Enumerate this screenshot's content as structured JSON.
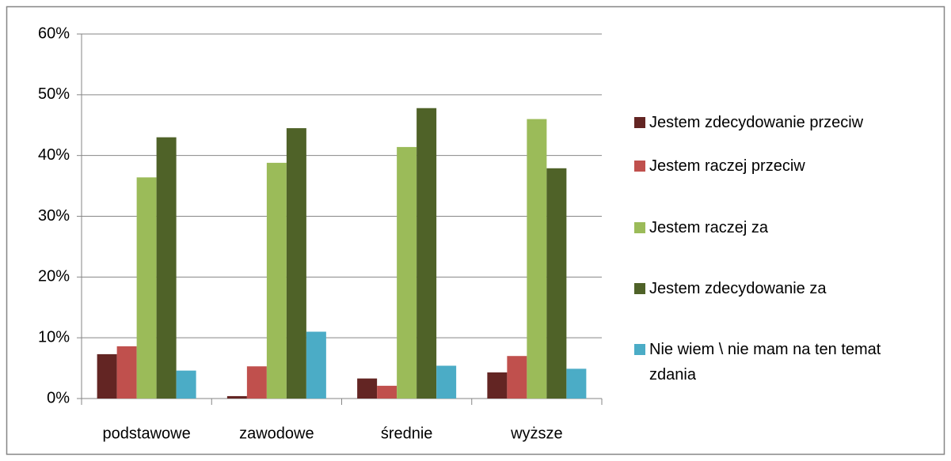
{
  "chart_data": {
    "type": "bar",
    "categories": [
      "podstawowe",
      "zawodowe",
      "średnie",
      "wyższe"
    ],
    "series": [
      {
        "name": "Jestem zdecydowanie przeciw",
        "color": "#632523",
        "values": [
          7.3,
          0.4,
          3.3,
          4.3
        ]
      },
      {
        "name": "Jestem raczej przeciw",
        "color": "#c0504d",
        "values": [
          8.6,
          5.3,
          2.1,
          7.0
        ]
      },
      {
        "name": "Jestem raczej za",
        "color": "#9bbb59",
        "values": [
          36.4,
          38.8,
          41.4,
          46.0
        ]
      },
      {
        "name": "Jestem zdecydowanie za",
        "color": "#4f6228",
        "values": [
          43.0,
          44.5,
          47.8,
          37.9
        ]
      },
      {
        "name": "Nie wiem \\ nie mam na ten temat zdania",
        "color": "#4bacc6",
        "values": [
          4.6,
          11.0,
          5.4,
          4.9
        ]
      }
    ],
    "ylim": [
      0,
      60
    ],
    "yticks": [
      {
        "value": 0,
        "label": "0%"
      },
      {
        "value": 10,
        "label": "10%"
      },
      {
        "value": 20,
        "label": "20%"
      },
      {
        "value": 30,
        "label": "30%"
      },
      {
        "value": 40,
        "label": "40%"
      },
      {
        "value": 50,
        "label": "50%"
      },
      {
        "value": 60,
        "label": "60%"
      }
    ],
    "grid": true,
    "legend": "right"
  }
}
